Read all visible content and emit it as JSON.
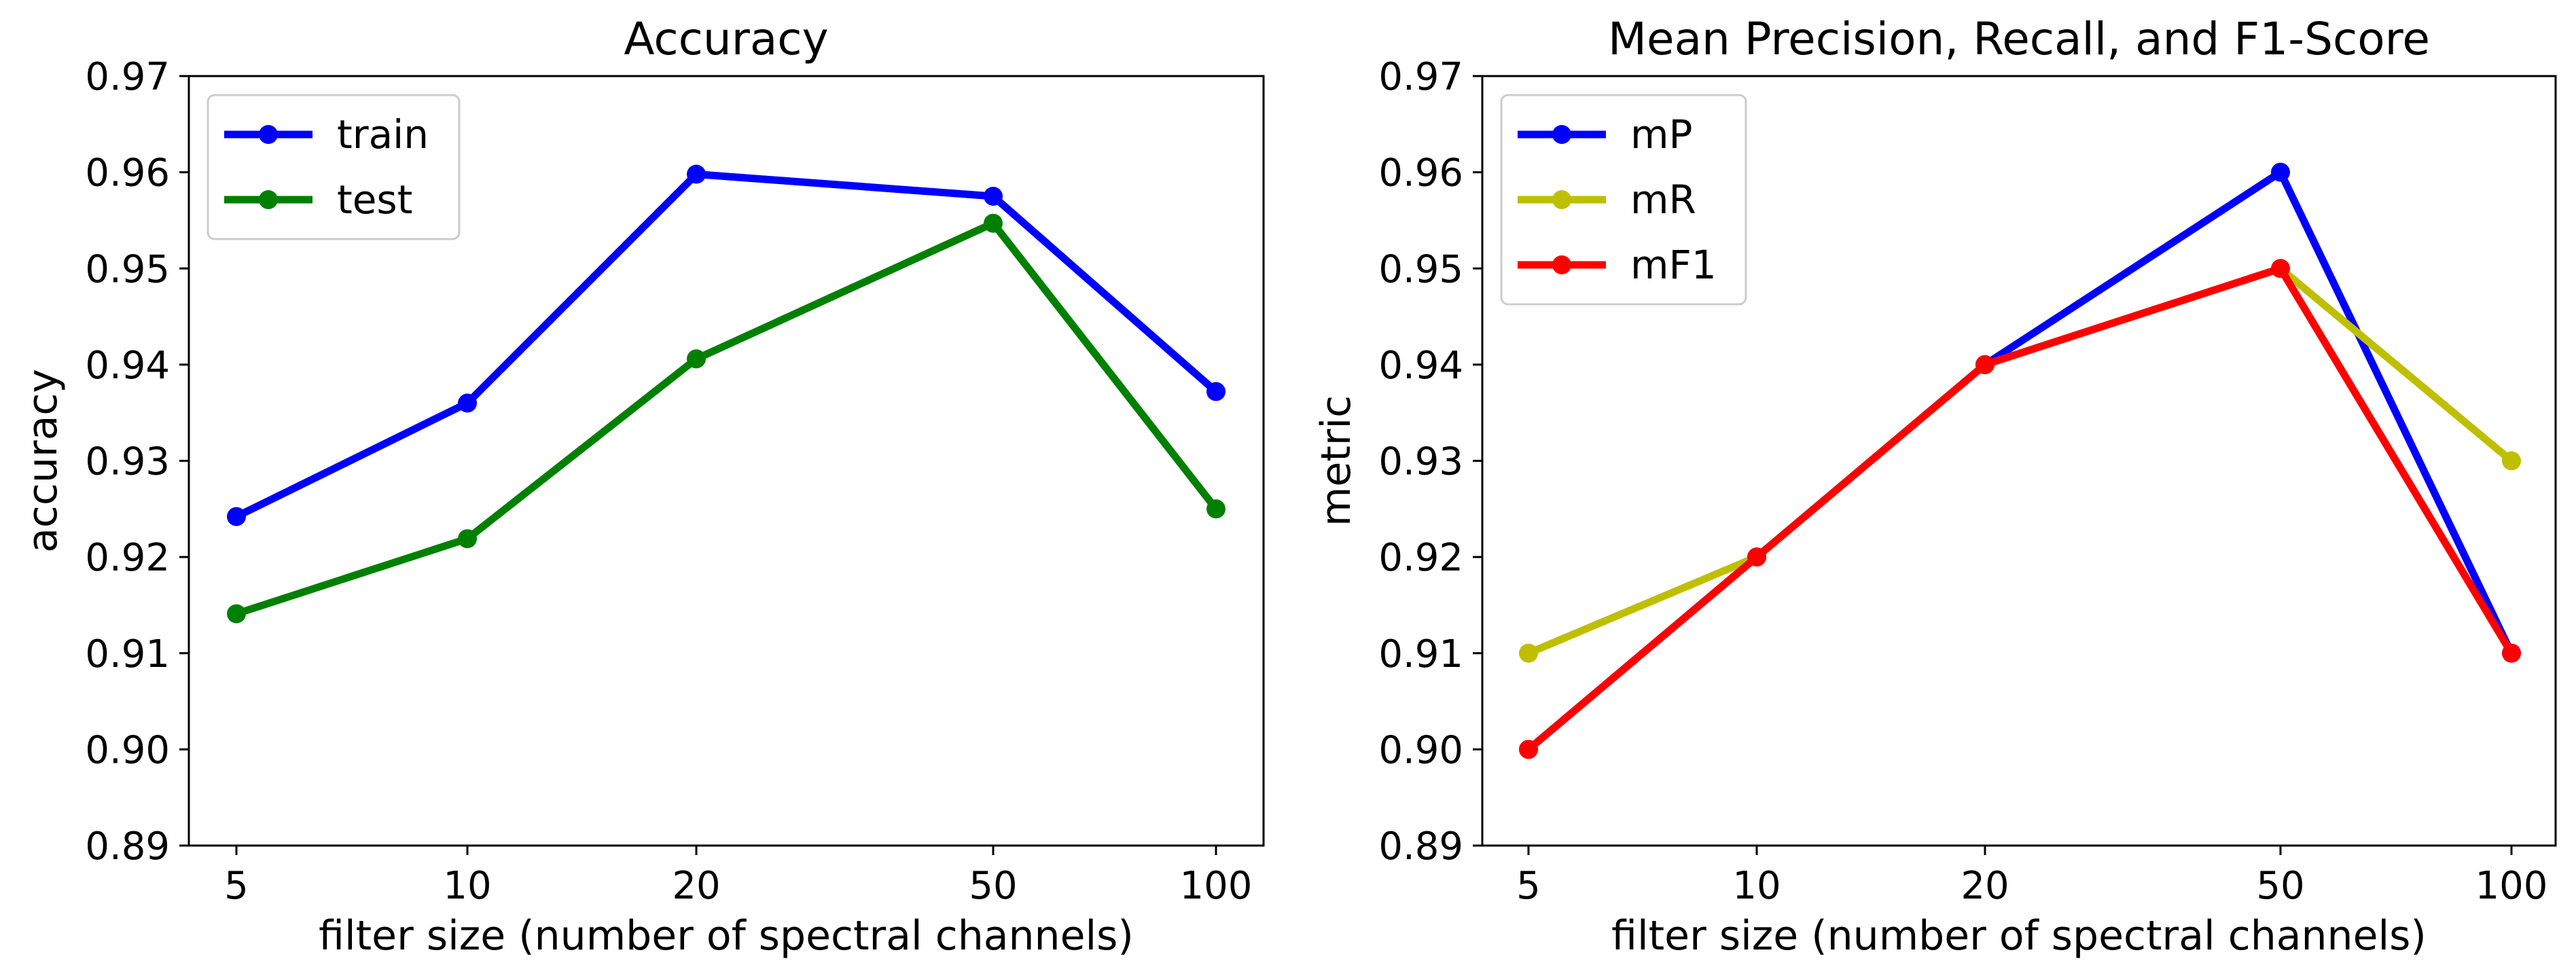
{
  "chart_data": [
    {
      "type": "line",
      "title": "Accuracy",
      "xlabel": "filter size (number of spectral channels)",
      "ylabel": "accuracy",
      "categories": [
        "5",
        "10",
        "20",
        "50",
        "100"
      ],
      "ylim": [
        0.89,
        0.97
      ],
      "yticks": [
        "0.89",
        "0.90",
        "0.91",
        "0.92",
        "0.93",
        "0.94",
        "0.95",
        "0.96",
        "0.97"
      ],
      "grid": false,
      "legend_position": "top-left",
      "series": [
        {
          "name": "train",
          "color": "#0000ff",
          "values": [
            0.9242,
            0.936,
            0.9598,
            0.9575,
            0.9372
          ]
        },
        {
          "name": "test",
          "color": "#008000",
          "values": [
            0.9141,
            0.9219,
            0.9406,
            0.9547,
            0.925
          ]
        }
      ]
    },
    {
      "type": "line",
      "title": "Mean Precision, Recall, and F1-Score",
      "xlabel": "filter size (number of spectral channels)",
      "ylabel": "metric",
      "categories": [
        "5",
        "10",
        "20",
        "50",
        "100"
      ],
      "ylim": [
        0.89,
        0.97
      ],
      "yticks": [
        "0.89",
        "0.90",
        "0.91",
        "0.92",
        "0.93",
        "0.94",
        "0.95",
        "0.96",
        "0.97"
      ],
      "grid": false,
      "legend_position": "top-left",
      "series": [
        {
          "name": "mP",
          "color": "#0000ff",
          "values": [
            0.9,
            0.92,
            0.94,
            0.96,
            0.91
          ]
        },
        {
          "name": "mR",
          "color": "#bfbf00",
          "values": [
            0.91,
            0.92,
            0.94,
            0.95,
            0.93
          ]
        },
        {
          "name": "mF1",
          "color": "#ff0000",
          "values": [
            0.9,
            0.92,
            0.94,
            0.95,
            0.91
          ]
        }
      ]
    }
  ]
}
